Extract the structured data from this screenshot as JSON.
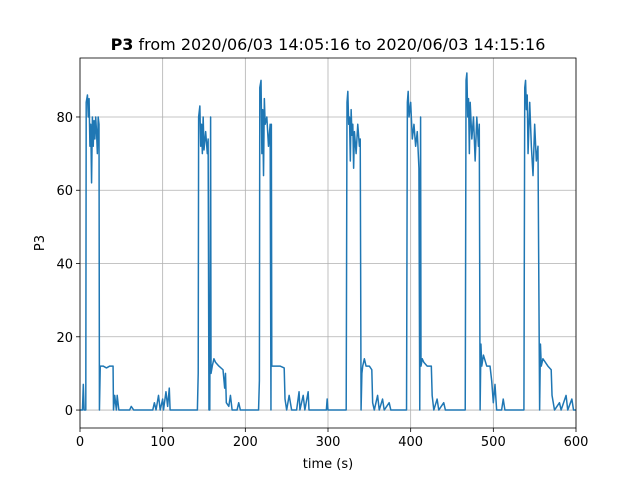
{
  "chart_data": {
    "type": "line",
    "title_bold": "P3",
    "title": "from 2020/06/03 14:05:16 to 2020/06/03 14:15:16",
    "xlabel": "time (s)",
    "ylabel": "P3",
    "color": "#1f77b4",
    "grid": true,
    "xlim": [
      0,
      600
    ],
    "xticks": [
      0,
      100,
      200,
      300,
      400,
      500,
      600
    ],
    "ylim": [
      -4.9,
      96.1
    ],
    "yticks": [
      0,
      20,
      40,
      60,
      80
    ],
    "x": [
      0,
      3,
      4,
      5,
      7,
      7.5,
      9,
      10,
      11,
      12,
      13,
      14,
      15,
      16,
      17,
      18,
      19,
      20,
      21,
      22,
      23,
      23.5,
      24.5,
      28,
      32,
      36,
      40,
      40.5,
      42,
      44,
      45,
      47,
      60,
      62,
      65,
      88,
      90,
      92,
      95,
      97,
      100,
      101,
      104,
      106,
      108,
      109,
      142,
      143,
      143.5,
      145,
      146,
      147,
      148,
      149,
      150,
      152,
      154,
      155,
      156,
      157,
      158,
      158.5,
      160,
      162,
      164,
      168,
      173,
      175,
      176,
      177,
      180,
      182,
      184,
      190,
      192,
      194,
      216,
      217,
      217.5,
      219,
      220,
      221,
      222,
      223,
      224,
      226,
      228,
      230,
      231,
      231.5,
      232,
      236,
      242,
      247,
      248,
      250,
      253,
      256,
      262,
      265,
      266,
      270,
      272,
      276,
      277,
      298,
      299,
      300,
      322,
      323,
      324,
      325,
      326,
      327,
      328,
      329,
      330,
      331,
      332,
      334,
      336,
      338,
      339,
      340,
      341,
      342,
      344,
      346,
      350,
      353,
      354,
      356,
      360,
      362,
      366,
      368,
      374,
      376,
      395,
      396,
      397,
      398,
      400,
      402,
      404,
      406,
      408,
      410,
      411,
      412,
      412.5,
      414,
      416,
      420,
      425,
      426,
      428,
      432,
      434,
      440,
      442,
      466,
      467,
      468,
      469,
      470,
      471,
      472,
      474,
      476,
      478,
      480,
      482,
      483,
      484,
      485,
      486,
      488,
      492,
      496,
      498,
      500,
      502,
      504,
      510,
      512,
      514,
      537,
      538,
      539,
      540,
      541,
      542,
      544,
      546,
      548,
      550,
      552,
      554,
      556,
      557,
      558,
      560,
      566,
      570,
      571,
      574,
      580,
      582,
      588,
      590,
      595,
      597,
      600
    ],
    "values": [
      0,
      0,
      7,
      0,
      0,
      84,
      86,
      80,
      85,
      72,
      78,
      62,
      80,
      72,
      79,
      74,
      80,
      76,
      70,
      80,
      78,
      0,
      12,
      12,
      11.5,
      12,
      12,
      0,
      4,
      0,
      4,
      0,
      0,
      1,
      0,
      0,
      2,
      0,
      4,
      0,
      3,
      0,
      5,
      1,
      6,
      0,
      0,
      10,
      80,
      83,
      72,
      78,
      70,
      80,
      71,
      76,
      70,
      74,
      0,
      0,
      80,
      10,
      12,
      14,
      13,
      12,
      11,
      6,
      10,
      2,
      1,
      4,
      0,
      0,
      2,
      0,
      0,
      8,
      88,
      90,
      70,
      82,
      64,
      85,
      78,
      80,
      72,
      78,
      0,
      78,
      12,
      12,
      12,
      11.5,
      3,
      0,
      4,
      0,
      0,
      5,
      0,
      4,
      0,
      5,
      0,
      0,
      3,
      0,
      0,
      84,
      87,
      78,
      80,
      68,
      82,
      75,
      78,
      66,
      76,
      70,
      78,
      72,
      74,
      0,
      10,
      12,
      14,
      12,
      12,
      11,
      2,
      0,
      4,
      0,
      3,
      0,
      2,
      0,
      0,
      84,
      87,
      80,
      84,
      74,
      78,
      72,
      76,
      66,
      0,
      80,
      12,
      14,
      13,
      12,
      12,
      4,
      0,
      3,
      0,
      2,
      0,
      0,
      90,
      92,
      80,
      85,
      70,
      84,
      74,
      80,
      68,
      80,
      72,
      78,
      0,
      18,
      12,
      15,
      12,
      12,
      8,
      2,
      7,
      0,
      0,
      3,
      0,
      0,
      88,
      90,
      82,
      86,
      70,
      84,
      72,
      64,
      78,
      68,
      72,
      0,
      18,
      12,
      14,
      12,
      11,
      4,
      0,
      2,
      0,
      4,
      0,
      3,
      0,
      0
    ]
  }
}
